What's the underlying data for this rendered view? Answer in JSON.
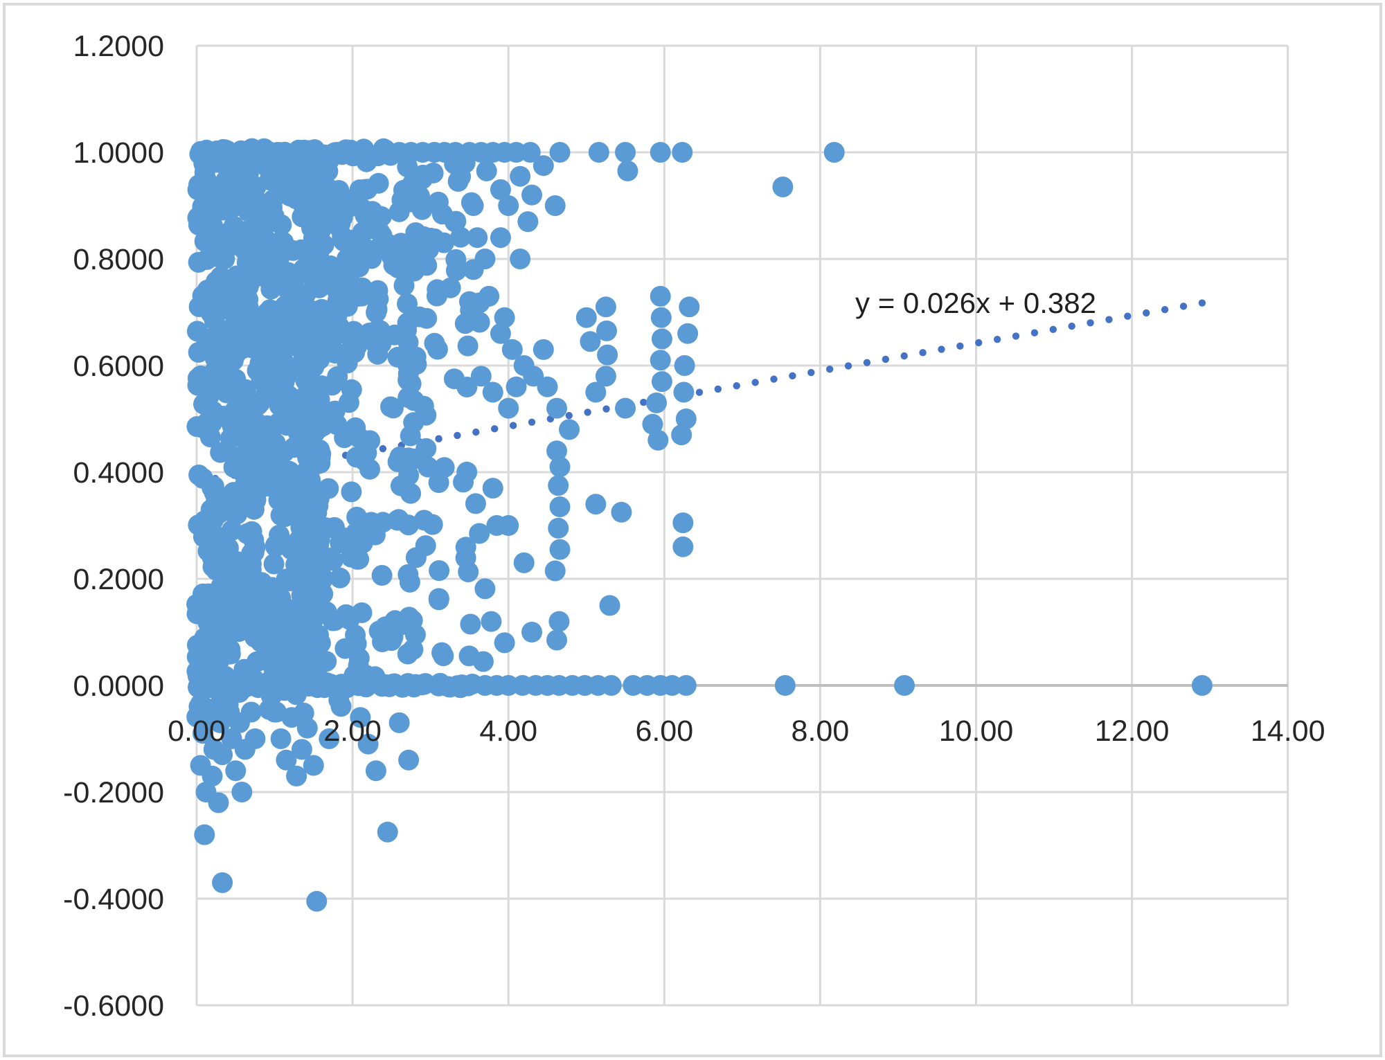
{
  "chart_data": {
    "type": "scatter",
    "title": "",
    "xlabel": "",
    "ylabel": "",
    "xlim": [
      0,
      14
    ],
    "ylim": [
      -0.6,
      1.2
    ],
    "grid": true,
    "x_tick_values": [
      0,
      2,
      4,
      6,
      8,
      10,
      12,
      14
    ],
    "x_tick_labels": [
      "0.00",
      "2.00",
      "4.00",
      "6.00",
      "8.00",
      "10.00",
      "12.00",
      "14.00"
    ],
    "y_tick_values": [
      1.2,
      1.0,
      0.8,
      0.6,
      0.4,
      0.2,
      0.0,
      -0.2,
      -0.4,
      -0.6
    ],
    "y_tick_labels": [
      "1.2000",
      "1.0000",
      "0.8000",
      "0.6000",
      "0.4000",
      "0.2000",
      "0.0000",
      "-0.2000",
      "-0.4000",
      "-0.6000"
    ],
    "colors": {
      "marker": "#5B9BD5",
      "trendline": "#4472C4",
      "gridline": "#D9D9D9",
      "axis_line": "#BFBFBF",
      "tick_text": "#262626",
      "background": "#FFFFFF",
      "chart_border": "#D9D9D9"
    },
    "trendline": {
      "label": "y = 0.026x + 0.382",
      "slope": 0.026,
      "intercept": 0.382,
      "x_start": 0,
      "x_end": 12.9,
      "style": "dotted"
    },
    "points": [
      [
        2.6,
        1
      ],
      [
        2.75,
        1
      ],
      [
        2.9,
        1
      ],
      [
        3.05,
        1
      ],
      [
        3.18,
        1
      ],
      [
        3.32,
        1
      ],
      [
        3.5,
        1
      ],
      [
        3.65,
        1
      ],
      [
        3.8,
        1
      ],
      [
        3.95,
        1
      ],
      [
        4.1,
        1
      ],
      [
        4.28,
        1
      ],
      [
        4.66,
        1
      ],
      [
        5.16,
        1
      ],
      [
        5.5,
        1
      ],
      [
        5.95,
        1
      ],
      [
        6.23,
        1
      ],
      [
        8.18,
        1
      ],
      [
        5.53,
        0.965
      ],
      [
        7.52,
        0.935
      ],
      [
        3.72,
        0.965
      ],
      [
        3.9,
        0.93
      ],
      [
        4.15,
        0.955
      ],
      [
        4.45,
        0.975
      ],
      [
        4.3,
        0.92
      ],
      [
        4.6,
        0.9
      ],
      [
        4.25,
        0.87
      ],
      [
        4.0,
        0.9
      ],
      [
        3.55,
        0.9
      ],
      [
        3.6,
        0.84
      ],
      [
        3.55,
        0.78
      ],
      [
        3.5,
        0.72
      ],
      [
        3.7,
        0.8
      ],
      [
        3.9,
        0.84
      ],
      [
        4.15,
        0.8
      ],
      [
        3.75,
        0.73
      ],
      [
        3.95,
        0.69
      ],
      [
        3.9,
        0.66
      ],
      [
        4.05,
        0.63
      ],
      [
        4.2,
        0.6
      ],
      [
        4.32,
        0.58
      ],
      [
        4.1,
        0.56
      ],
      [
        4.45,
        0.63
      ],
      [
        4.5,
        0.56
      ],
      [
        3.65,
        0.58
      ],
      [
        3.8,
        0.55
      ],
      [
        4.0,
        0.52
      ],
      [
        4.62,
        0.52
      ],
      [
        4.78,
        0.48
      ],
      [
        5.0,
        0.69
      ],
      [
        5.05,
        0.645
      ],
      [
        5.12,
        0.55
      ],
      [
        5.25,
        0.71
      ],
      [
        5.26,
        0.665
      ],
      [
        5.27,
        0.62
      ],
      [
        5.25,
        0.58
      ],
      [
        5.5,
        0.52
      ],
      [
        5.95,
        0.73
      ],
      [
        5.96,
        0.69
      ],
      [
        5.97,
        0.65
      ],
      [
        5.95,
        0.61
      ],
      [
        5.97,
        0.57
      ],
      [
        5.9,
        0.53
      ],
      [
        5.85,
        0.49
      ],
      [
        5.92,
        0.46
      ],
      [
        6.26,
        0.6
      ],
      [
        6.25,
        0.55
      ],
      [
        6.28,
        0.5
      ],
      [
        6.22,
        0.47
      ],
      [
        6.3,
        0.66
      ],
      [
        6.32,
        0.71
      ],
      [
        4.62,
        0.44
      ],
      [
        4.66,
        0.41
      ],
      [
        4.64,
        0.375
      ],
      [
        4.66,
        0.335
      ],
      [
        4.64,
        0.295
      ],
      [
        4.66,
        0.255
      ],
      [
        4.6,
        0.215
      ],
      [
        4.65,
        0.12
      ],
      [
        4.62,
        0.085
      ],
      [
        5.12,
        0.34
      ],
      [
        5.45,
        0.325
      ],
      [
        5.3,
        0.15
      ],
      [
        6.24,
        0.305
      ],
      [
        6.24,
        0.26
      ],
      [
        4.0,
        0.3
      ],
      [
        4.2,
        0.23
      ],
      [
        3.78,
        0.12
      ],
      [
        3.95,
        0.08
      ],
      [
        4.3,
        0.1
      ],
      [
        3.85,
        0.3
      ],
      [
        3.8,
        0.37
      ],
      [
        3.7,
        0
      ],
      [
        3.85,
        0
      ],
      [
        4.0,
        0
      ],
      [
        4.18,
        0
      ],
      [
        4.35,
        0
      ],
      [
        4.5,
        0
      ],
      [
        4.65,
        0
      ],
      [
        4.82,
        0
      ],
      [
        4.98,
        0
      ],
      [
        5.15,
        0
      ],
      [
        5.32,
        0
      ],
      [
        5.6,
        0
      ],
      [
        5.78,
        0
      ],
      [
        5.95,
        0
      ],
      [
        6.1,
        0
      ],
      [
        6.28,
        0
      ],
      [
        7.55,
        0
      ],
      [
        9.08,
        0
      ],
      [
        12.9,
        0
      ],
      [
        0.03,
        -0.04
      ],
      [
        0.08,
        -0.09
      ],
      [
        0.05,
        -0.15
      ],
      [
        0.12,
        -0.2
      ],
      [
        0.1,
        -0.28
      ],
      [
        0.18,
        -0.06
      ],
      [
        0.22,
        -0.12
      ],
      [
        0.2,
        -0.17
      ],
      [
        0.3,
        -0.07
      ],
      [
        0.33,
        -0.13
      ],
      [
        0.28,
        -0.22
      ],
      [
        0.42,
        -0.05
      ],
      [
        0.45,
        -0.1
      ],
      [
        0.5,
        -0.16
      ],
      [
        0.55,
        -0.07
      ],
      [
        0.62,
        -0.12
      ],
      [
        0.58,
        -0.2
      ],
      [
        0.7,
        -0.05
      ],
      [
        0.75,
        -0.1
      ],
      [
        0.33,
        -0.37
      ],
      [
        1.0,
        -0.05
      ],
      [
        1.08,
        -0.1
      ],
      [
        1.15,
        -0.14
      ],
      [
        1.28,
        -0.17
      ],
      [
        1.35,
        -0.12
      ],
      [
        1.22,
        -0.06
      ],
      [
        1.42,
        -0.08
      ],
      [
        1.54,
        -0.405
      ],
      [
        1.5,
        -0.15
      ],
      [
        1.7,
        -0.1
      ],
      [
        2.1,
        -0.06
      ],
      [
        2.2,
        -0.11
      ],
      [
        2.3,
        -0.16
      ],
      [
        2.45,
        -0.275
      ],
      [
        2.6,
        -0.07
      ],
      [
        2.72,
        -0.14
      ]
    ],
    "dense_clusters": [
      {
        "name": "core-blob",
        "seed": 11,
        "n": 620,
        "x": [
          0,
          1.58
        ],
        "xexp": 1.0,
        "y": [
          0.005,
          0.995
        ]
      },
      {
        "name": "inner-fringe",
        "seed": 22,
        "n": 175,
        "x": [
          1.5,
          2.8
        ],
        "xexp": 1.7,
        "y": [
          0.0,
          1.0
        ]
      },
      {
        "name": "outer-fringe",
        "seed": 33,
        "n": 85,
        "x": [
          2.7,
          3.7
        ],
        "xexp": 1.6,
        "y": [
          0.04,
          0.99
        ]
      },
      {
        "name": "upper-shoulder",
        "seed": 77,
        "n": 70,
        "x": [
          1.6,
          3.1
        ],
        "xexp": 1.4,
        "y": [
          0.62,
          1.0
        ]
      },
      {
        "name": "top-row",
        "seed": 44,
        "n": 70,
        "x": [
          0,
          2.5
        ],
        "xexp": 1.2,
        "y": [
          0.993,
          1.007
        ]
      },
      {
        "name": "zero-row",
        "seed": 55,
        "n": 95,
        "x": [
          0,
          3.6
        ],
        "xexp": 1.25,
        "y": [
          -0.005,
          0.005
        ]
      },
      {
        "name": "below-zero-spill",
        "seed": 66,
        "n": 22,
        "x": [
          0,
          1.9
        ],
        "xexp": 1.2,
        "y": [
          -0.06,
          -0.005
        ]
      }
    ]
  }
}
